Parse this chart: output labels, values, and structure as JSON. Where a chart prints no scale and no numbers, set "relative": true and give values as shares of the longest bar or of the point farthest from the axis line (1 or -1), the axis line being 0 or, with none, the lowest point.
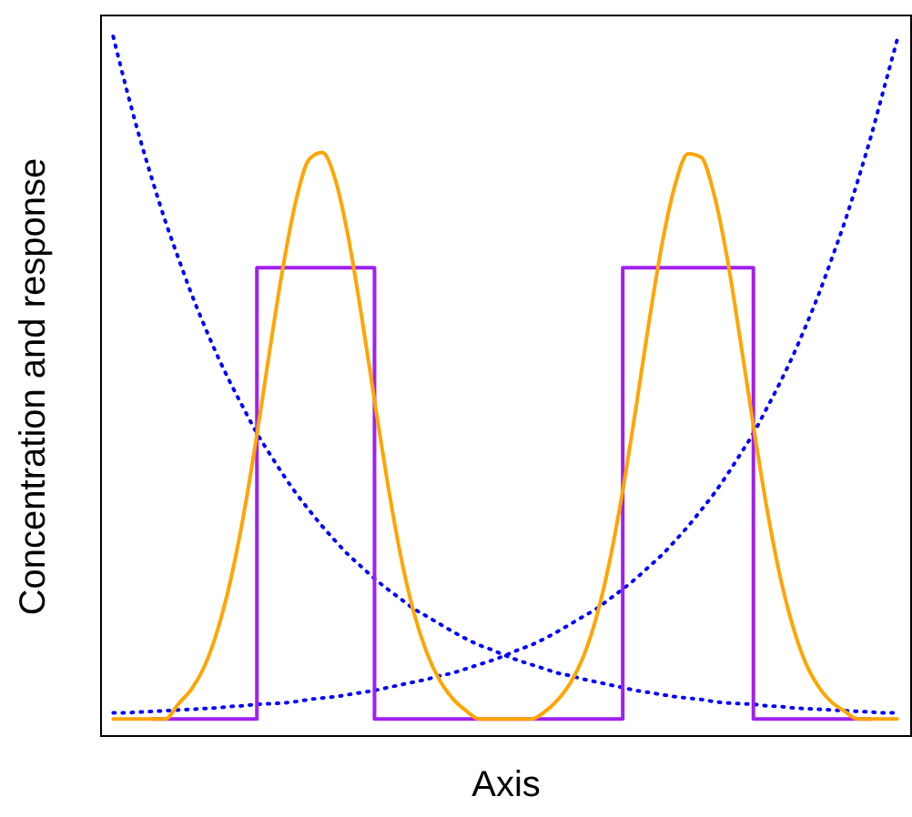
{
  "chart_data": {
    "type": "line",
    "relative": true,
    "xlabel": "Axis",
    "ylabel": "Concentration and response",
    "grid": false,
    "categories": [
      null,
      null,
      null,
      null,
      null,
      null,
      null,
      null,
      null,
      null,
      null,
      null,
      null,
      null,
      null,
      null,
      null,
      null,
      null,
      null,
      null,
      null,
      null,
      null,
      null,
      null,
      null,
      null,
      null,
      null,
      null,
      null,
      null,
      null,
      null,
      null,
      null,
      null,
      null,
      null,
      null,
      null,
      null,
      null,
      null,
      null,
      null,
      null,
      null,
      null,
      null,
      null,
      null,
      null,
      null,
      null,
      null,
      null,
      null,
      null,
      null
    ],
    "series": [
      {
        "color": "#0000ff",
        "line_style": "dotted",
        "values": [
          1,
          0.926,
          0.857,
          0.794,
          0.735,
          0.682,
          0.631,
          0.585,
          0.542,
          0.503,
          0.467,
          0.432,
          0.402,
          0.373,
          0.346,
          0.322,
          0.299,
          0.278,
          0.258,
          0.241,
          0.224,
          0.209,
          0.195,
          0.181,
          0.17,
          0.159,
          0.148,
          0.138,
          0.129,
          0.122,
          0.114,
          0.107,
          0.101,
          0.095,
          0.089,
          0.085,
          0.08,
          0.076,
          0.072,
          0.068,
          0.064,
          0.061,
          0.058,
          0.055,
          0.053,
          0.051,
          0.048,
          0.046,
          0.045,
          0.044,
          0.042,
          0.041,
          0.039,
          0.038,
          0.037,
          0.036,
          0.035,
          0.034,
          0.033,
          0.032,
          0.032
        ]
      },
      {
        "color": "#0000ff",
        "line_style": "dotted",
        "values": [
          0.032,
          0.032,
          0.033,
          0.034,
          0.035,
          0.036,
          0.037,
          0.038,
          0.039,
          0.041,
          0.042,
          0.044,
          0.045,
          0.046,
          0.048,
          0.051,
          0.053,
          0.055,
          0.058,
          0.061,
          0.064,
          0.068,
          0.072,
          0.076,
          0.08,
          0.085,
          0.089,
          0.095,
          0.101,
          0.107,
          0.114,
          0.122,
          0.129,
          0.138,
          0.148,
          0.159,
          0.17,
          0.181,
          0.195,
          0.209,
          0.224,
          0.241,
          0.258,
          0.278,
          0.299,
          0.322,
          0.346,
          0.373,
          0.402,
          0.432,
          0.467,
          0.503,
          0.542,
          0.585,
          0.631,
          0.682,
          0.735,
          0.794,
          0.857,
          0.926,
          0.995
        ]
      },
      {
        "type": "step",
        "color": "#a020f0",
        "line_style": "solid",
        "values": [
          null,
          null,
          null,
          0.023,
          0.023,
          0.023,
          0.023,
          0.023,
          0.023,
          0.023,
          0.023,
          0.669,
          0.669,
          0.669,
          0.669,
          0.669,
          0.669,
          0.669,
          0.669,
          0.669,
          0.023,
          0.023,
          0.023,
          0.023,
          0.023,
          0.023,
          0.023,
          0.023,
          0.023,
          0.023,
          0.023,
          0.023,
          0.023,
          0.023,
          0.023,
          0.023,
          0.023,
          0.023,
          0.023,
          0.669,
          0.669,
          0.669,
          0.669,
          0.669,
          0.669,
          0.669,
          0.669,
          0.669,
          0.669,
          0.023,
          0.023,
          0.023,
          0.023,
          0.023,
          0.023,
          0.023,
          0.023,
          0.023,
          0.023,
          null,
          null
        ]
      },
      {
        "type": "line",
        "color": "#ffa500",
        "line_style": "solid",
        "values": [
          0.023,
          0.023,
          0.023,
          0.023,
          0.023,
          0.045,
          0.066,
          0.099,
          0.151,
          0.223,
          0.317,
          0.43,
          0.553,
          0.67,
          0.766,
          0.824,
          0.834,
          0.795,
          0.712,
          0.601,
          0.479,
          0.361,
          0.257,
          0.176,
          0.118,
          0.078,
          0.052,
          0.035,
          0.023,
          0.023,
          0.023,
          0.023,
          0.023,
          0.033,
          0.05,
          0.075,
          0.113,
          0.17,
          0.249,
          0.35,
          0.467,
          0.59,
          0.702,
          0.787,
          0.832,
          0.827,
          0.773,
          0.682,
          0.565,
          0.443,
          0.328,
          0.231,
          0.157,
          0.103,
          0.069,
          0.047,
          0.034,
          0.023,
          0.023,
          0.023,
          0.023
        ]
      }
    ]
  }
}
